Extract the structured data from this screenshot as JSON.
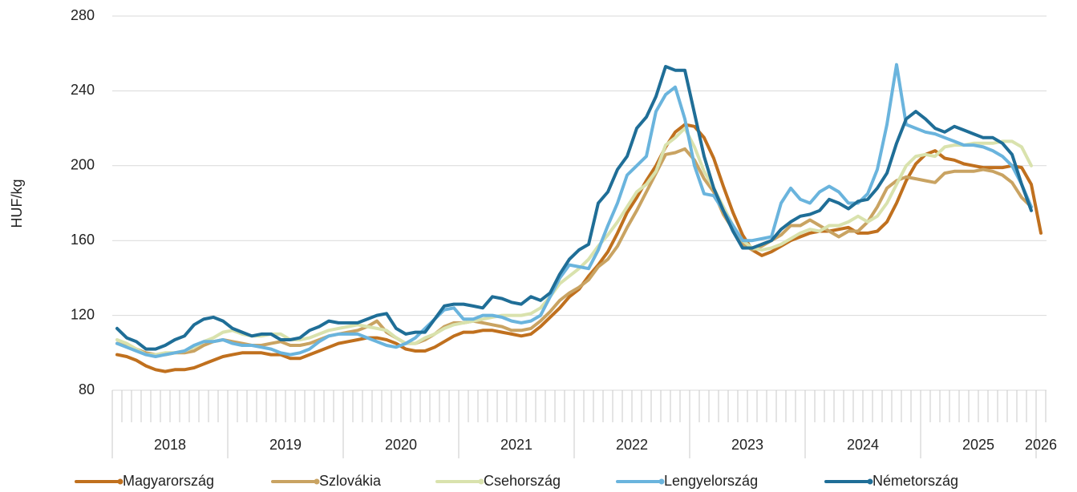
{
  "chart_data": {
    "type": "line",
    "y_label": "HUF/kg",
    "categories": [
      "2018",
      null,
      null,
      null,
      null,
      null,
      null,
      null,
      null,
      null,
      null,
      null,
      "2019",
      null,
      null,
      null,
      null,
      null,
      null,
      null,
      null,
      null,
      null,
      null,
      "2020",
      null,
      null,
      null,
      null,
      null,
      null,
      null,
      null,
      null,
      null,
      null,
      "2021",
      null,
      null,
      null,
      null,
      null,
      null,
      null,
      null,
      null,
      null,
      null,
      "2022",
      null,
      null,
      null,
      null,
      null,
      null,
      null,
      null,
      null,
      null,
      null,
      "2023",
      null,
      null,
      null,
      null,
      null,
      null,
      null,
      null,
      null,
      null,
      null,
      "2024",
      null,
      null,
      null,
      null,
      null,
      null,
      null,
      null,
      null,
      null,
      null,
      "2025",
      null,
      null,
      null,
      null,
      null,
      null,
      null,
      null,
      null,
      null,
      null,
      "2026"
    ],
    "ylim": [
      80,
      280
    ],
    "yticks": [
      80,
      120,
      160,
      200,
      240,
      280
    ],
    "grid": true,
    "legend": "bottom",
    "series": [
      {
        "name": "Magyarország",
        "color": "#c0701e",
        "values": [
          99,
          98,
          96,
          93,
          91,
          90,
          91,
          91,
          92,
          94,
          96,
          98,
          99,
          100,
          100,
          100,
          99,
          99,
          97,
          97,
          99,
          101,
          103,
          105,
          106,
          107,
          108,
          108,
          107,
          105,
          102,
          101,
          101,
          103,
          106,
          109,
          111,
          111,
          112,
          112,
          111,
          110,
          109,
          110,
          114,
          119,
          124,
          130,
          134,
          141,
          147,
          154,
          164,
          175,
          183,
          192,
          200,
          210,
          218,
          222,
          221,
          215,
          204,
          189,
          175,
          163,
          155,
          152,
          154,
          157,
          160,
          162,
          164,
          165,
          165,
          166,
          167,
          164,
          164,
          165,
          170,
          180,
          192,
          201,
          206,
          208,
          204,
          203,
          201,
          200,
          199,
          199,
          199,
          200,
          199,
          190,
          164
        ]
      },
      {
        "name": "Szlovákia",
        "color": "#c9a362",
        "values": [
          105,
          104,
          102,
          100,
          99,
          99,
          100,
          100,
          101,
          104,
          106,
          107,
          106,
          105,
          104,
          104,
          105,
          106,
          104,
          104,
          105,
          107,
          109,
          110,
          111,
          112,
          114,
          117,
          111,
          108,
          105,
          105,
          107,
          110,
          114,
          116,
          116,
          117,
          116,
          115,
          114,
          112,
          112,
          113,
          117,
          122,
          128,
          132,
          135,
          139,
          146,
          150,
          157,
          167,
          176,
          186,
          196,
          206,
          207,
          209,
          203,
          193,
          186,
          174,
          166,
          158,
          155,
          157,
          160,
          163,
          168,
          168,
          171,
          168,
          165,
          162,
          165,
          165,
          170,
          178,
          188,
          192,
          194,
          193,
          192,
          191,
          196,
          197,
          197,
          197,
          198,
          197,
          195,
          191,
          183,
          178,
          null
        ]
      },
      {
        "name": "Csehország",
        "color": "#d9e2ad",
        "values": [
          107,
          105,
          102,
          99,
          99,
          100,
          100,
          101,
          103,
          106,
          108,
          111,
          112,
          110,
          109,
          109,
          110,
          110,
          107,
          107,
          108,
          110,
          112,
          113,
          114,
          115,
          114,
          113,
          112,
          108,
          105,
          105,
          108,
          110,
          113,
          115,
          116,
          117,
          118,
          119,
          120,
          120,
          120,
          121,
          124,
          130,
          137,
          141,
          145,
          150,
          157,
          163,
          170,
          178,
          186,
          190,
          197,
          211,
          215,
          220,
          210,
          197,
          188,
          178,
          168,
          160,
          156,
          155,
          156,
          158,
          161,
          164,
          166,
          165,
          168,
          168,
          170,
          173,
          170,
          173,
          180,
          190,
          200,
          205,
          206,
          205,
          210,
          211,
          211,
          212,
          212,
          212,
          213,
          213,
          210,
          200,
          null
        ]
      },
      {
        "name": "Lengyelország",
        "color": "#6ab4dd",
        "values": [
          105,
          103,
          101,
          99,
          98,
          99,
          100,
          101,
          104,
          106,
          106,
          107,
          105,
          104,
          104,
          103,
          102,
          100,
          99,
          100,
          102,
          106,
          109,
          110,
          110,
          110,
          108,
          106,
          104,
          103,
          105,
          108,
          113,
          118,
          123,
          124,
          118,
          118,
          120,
          120,
          119,
          117,
          116,
          117,
          120,
          130,
          140,
          147,
          146,
          145,
          155,
          168,
          180,
          195,
          200,
          205,
          229,
          238,
          242,
          225,
          200,
          185,
          184,
          176,
          168,
          160,
          160,
          161,
          162,
          180,
          188,
          182,
          180,
          186,
          189,
          186,
          180,
          180,
          185,
          198,
          222,
          254,
          222,
          220,
          218,
          217,
          215,
          213,
          211,
          211,
          210,
          208,
          205,
          200,
          190,
          178,
          null
        ]
      },
      {
        "name": "Németország",
        "color": "#1f6e97",
        "values": [
          113,
          108,
          106,
          102,
          102,
          104,
          107,
          109,
          115,
          118,
          119,
          117,
          113,
          111,
          109,
          110,
          110,
          107,
          107,
          108,
          112,
          114,
          117,
          116,
          116,
          116,
          118,
          120,
          121,
          113,
          110,
          111,
          111,
          118,
          125,
          126,
          126,
          125,
          124,
          130,
          129,
          127,
          126,
          130,
          128,
          132,
          142,
          150,
          155,
          158,
          180,
          186,
          198,
          205,
          220,
          226,
          237,
          253,
          251,
          251,
          228,
          205,
          188,
          176,
          165,
          156,
          156,
          158,
          160,
          166,
          170,
          173,
          174,
          176,
          182,
          180,
          177,
          181,
          182,
          188,
          196,
          212,
          225,
          229,
          225,
          220,
          218,
          221,
          219,
          217,
          215,
          215,
          212,
          206,
          190,
          176,
          null
        ]
      }
    ]
  }
}
